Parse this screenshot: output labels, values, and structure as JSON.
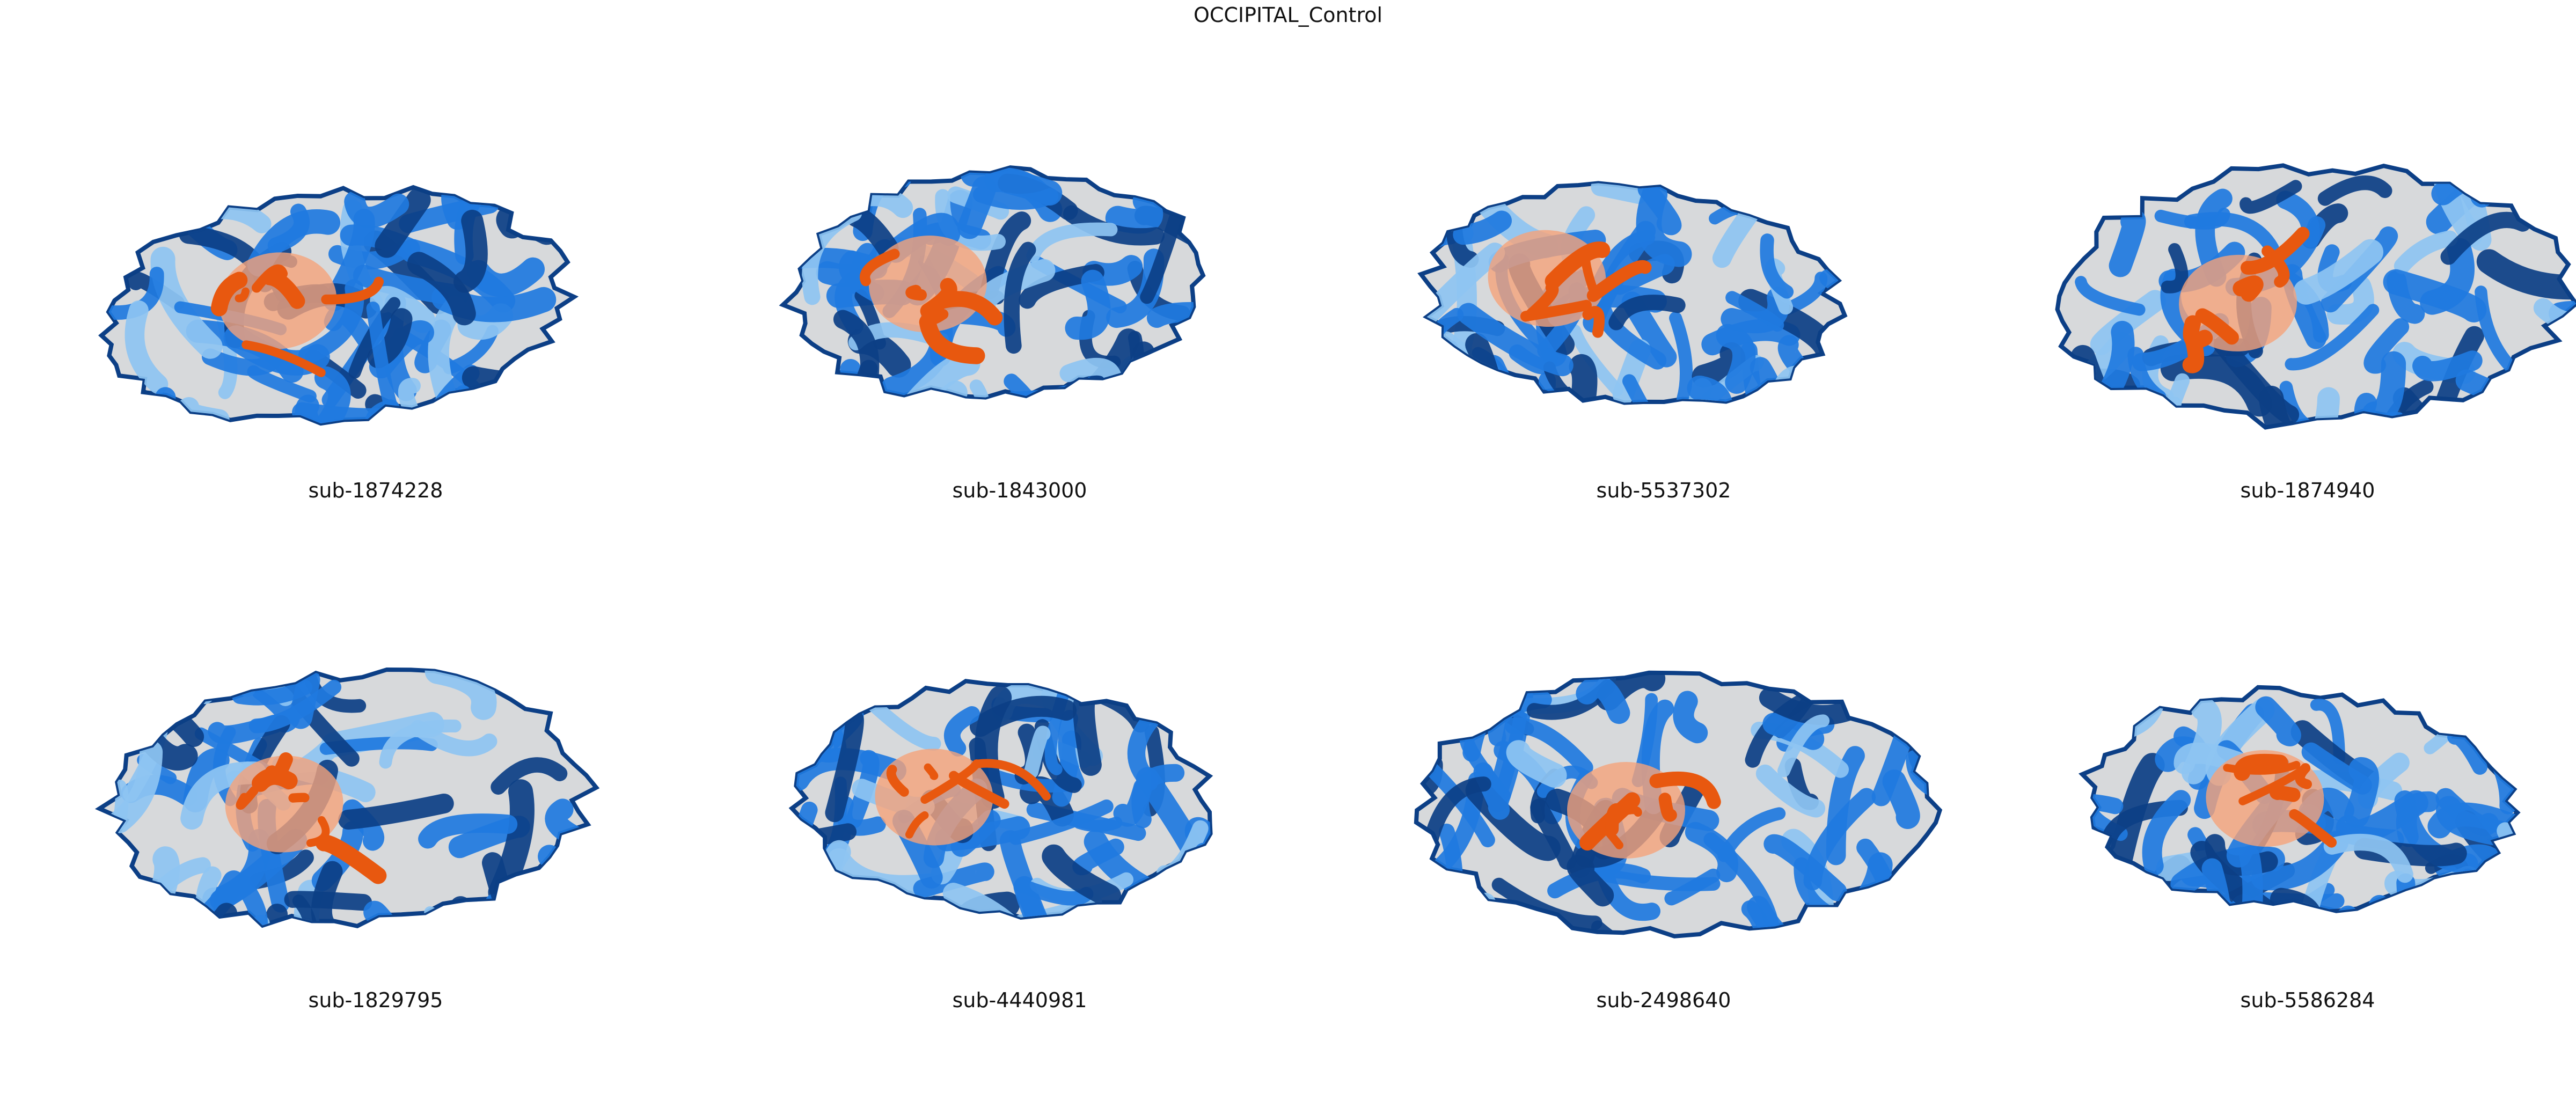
{
  "title": "OCCIPITAL_Control",
  "colors": {
    "cortex_blue": "#1f7ae0",
    "cortex_dark_blue": "#0c3f86",
    "cortex_light_blue": "#8ec4f2",
    "white_matter_gray": "#d7d9db",
    "highlight_orange": "#e8580f",
    "highlight_light_orange": "#f5a37a"
  },
  "panels": [
    {
      "label": "sub-1874228"
    },
    {
      "label": "sub-1843000"
    },
    {
      "label": "sub-5537302"
    },
    {
      "label": "sub-1874940"
    },
    {
      "label": "sub-1829795"
    },
    {
      "label": "sub-4440981"
    },
    {
      "label": "sub-2498640"
    },
    {
      "label": "sub-5586284"
    }
  ]
}
